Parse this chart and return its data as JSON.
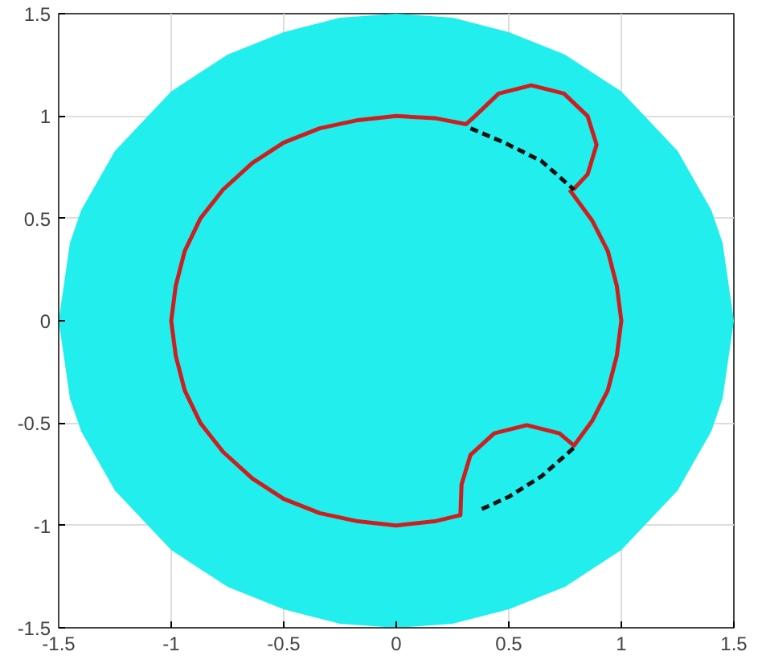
{
  "chart_data": {
    "type": "line",
    "xlim": [
      -1.5,
      1.5
    ],
    "ylim": [
      -1.5,
      1.5
    ],
    "xticks": [
      -1.5,
      -1,
      -0.5,
      0,
      0.5,
      1,
      1.5
    ],
    "yticks": [
      -1.5,
      -1,
      -0.5,
      0,
      0.5,
      1,
      1.5
    ],
    "grid": true,
    "marker": "none",
    "series": [
      {
        "type": "area",
        "color": "#22eeee",
        "x": [
          -1.5,
          -1.45,
          -1.4,
          -1.25,
          -1,
          -0.75,
          -0.5,
          -0.25,
          0,
          0.25,
          0.5,
          0.75,
          1,
          1.25,
          1.4,
          1.45,
          1.5
        ],
        "values": [
          0,
          0.38,
          0.54,
          0.83,
          1.12,
          1.3,
          1.41,
          1.48,
          1.5,
          1.48,
          1.41,
          1.3,
          1.12,
          0.83,
          0.54,
          0.38,
          0
        ]
      },
      {
        "type": "area",
        "color": "#22eeee",
        "x": [
          -1.5,
          -1.45,
          -1.4,
          -1.25,
          -1,
          -0.75,
          -0.5,
          -0.25,
          0,
          0.25,
          0.5,
          0.75,
          1,
          1.25,
          1.4,
          1.45,
          1.5
        ],
        "values": [
          0,
          -0.38,
          -0.54,
          -0.83,
          -1.12,
          -1.3,
          -1.41,
          -1.48,
          -1.5,
          -1.48,
          -1.41,
          -1.3,
          -1.12,
          -0.83,
          -0.54,
          -0.38,
          0
        ]
      },
      {
        "type": "line",
        "color": "#cc1f1f",
        "line_style": "solid",
        "x": [
          0.77,
          0.87,
          0.94,
          0.98,
          1.0,
          0.98,
          0.94,
          0.87,
          0.79,
          0.725,
          0.58,
          0.435,
          0.33,
          0.29,
          0.285,
          0.17,
          0,
          -0.17,
          -0.34,
          -0.5,
          -0.64,
          -0.77,
          -0.87,
          -0.94,
          -0.98,
          -1,
          -0.98,
          -0.94,
          -0.87,
          -0.77,
          -0.64,
          -0.5,
          -0.34,
          -0.17,
          0,
          0.17,
          0.31,
          0.35,
          0.455,
          0.6,
          0.745,
          0.85,
          0.89,
          0.85,
          0.786
        ],
        "values": [
          0.64,
          0.49,
          0.34,
          0.17,
          0,
          -0.17,
          -0.34,
          -0.49,
          -0.61,
          -0.55,
          -0.51,
          -0.55,
          -0.655,
          -0.8,
          -0.95,
          -0.98,
          -1,
          -0.98,
          -0.94,
          -0.87,
          -0.77,
          -0.64,
          -0.5,
          -0.34,
          -0.17,
          0,
          0.17,
          0.34,
          0.5,
          0.64,
          0.77,
          0.87,
          0.94,
          0.98,
          1,
          0.99,
          0.96,
          1.0,
          1.11,
          1.15,
          1.11,
          1.0,
          0.86,
          0.715,
          0.64
        ]
      },
      {
        "color": "#111111",
        "line_style": "dashed",
        "x": [
          0.33,
          0.48,
          0.645,
          0.79
        ],
        "values": [
          0.94,
          0.87,
          0.78,
          0.64
        ]
      },
      {
        "color": "#111111",
        "line_style": "dashed",
        "x": [
          0.38,
          0.5,
          0.645,
          0.79
        ],
        "values": [
          -0.92,
          -0.86,
          -0.76,
          -0.62
        ]
      }
    ]
  }
}
